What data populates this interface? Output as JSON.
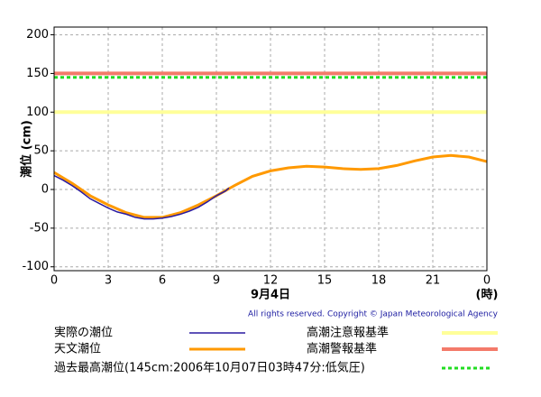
{
  "chart_data": {
    "type": "line",
    "ylabel": "潮位 (cm)",
    "xlabel": "9月4日",
    "xunit": "(時)",
    "copyright": "All rights reserved. Copyright © Japan Meteorological Agency",
    "xlim": [
      0,
      24
    ],
    "xticks": [
      0,
      3,
      6,
      9,
      12,
      15,
      18,
      21,
      {
        "value": 24,
        "label": "0"
      }
    ],
    "ylim": [
      -105,
      210
    ],
    "yticks": [
      -100,
      -50,
      0,
      50,
      100,
      150,
      200
    ],
    "grid": true,
    "series": [
      {
        "name": "実際の潮位",
        "color": "#2a1aa0",
        "x": [
          0,
          0.5,
          1,
          1.5,
          2,
          2.5,
          3,
          3.5,
          4,
          4.5,
          5,
          5.5,
          6,
          6.5,
          7,
          7.5,
          8,
          8.5,
          9,
          9.5,
          9.7
        ],
        "values": [
          18,
          12,
          5,
          -3,
          -12,
          -18,
          -24,
          -29,
          -32,
          -36,
          -38,
          -38,
          -37,
          -35,
          -32,
          -28,
          -23,
          -16,
          -8,
          -2,
          2
        ]
      },
      {
        "name": "天文潮位",
        "color": "#ff9900",
        "x": [
          0,
          1,
          2,
          3,
          4,
          5,
          6,
          7,
          8,
          9,
          10,
          11,
          12,
          13,
          14,
          15,
          16,
          17,
          18,
          19,
          20,
          21,
          22,
          23,
          24
        ],
        "values": [
          22,
          8,
          -8,
          -20,
          -30,
          -36,
          -36,
          -30,
          -20,
          -8,
          5,
          17,
          24,
          28,
          30,
          29,
          27,
          26,
          27,
          31,
          37,
          42,
          44,
          42,
          36
        ]
      }
    ],
    "reference_lines": [
      {
        "name": "高潮注意報基準",
        "value": 100,
        "color": "#ffff99",
        "dash": false
      },
      {
        "name": "高潮警報基準",
        "value": 150,
        "color": "#f47a6a",
        "dash": false
      },
      {
        "name": "過去最高潮位(145cm:2006年10月07日03時47分:低気圧)",
        "value": 145,
        "color": "#22dd22",
        "dash": true
      }
    ]
  }
}
